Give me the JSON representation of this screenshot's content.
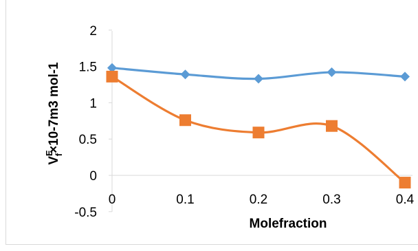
{
  "chart_data": {
    "type": "line",
    "xlabel": "Molefraction",
    "ylabel": "V",
    "ylabel_sup": "E",
    "ylabel_sub": "f",
    "ylabel_rest": "×10-7m3 mol-1",
    "ylim": [
      -0.5,
      2
    ],
    "y_ticks": [
      "-0.5",
      "0",
      "0.5",
      "1",
      "1.5",
      "2"
    ],
    "x_ticks": [
      "0",
      "0.1",
      "0.2",
      "0.3",
      "0.4"
    ],
    "x": [
      0,
      0.1,
      0.2,
      0.3,
      0.4
    ],
    "series": [
      {
        "marker": "diamond",
        "color": "#5b9bd5",
        "values": [
          1.48,
          1.39,
          1.33,
          1.42,
          1.36
        ]
      },
      {
        "marker": "square",
        "color": "#ed7d31",
        "values": [
          1.36,
          0.76,
          0.59,
          0.68,
          -0.1
        ]
      }
    ],
    "grid": false,
    "legend": "none"
  }
}
